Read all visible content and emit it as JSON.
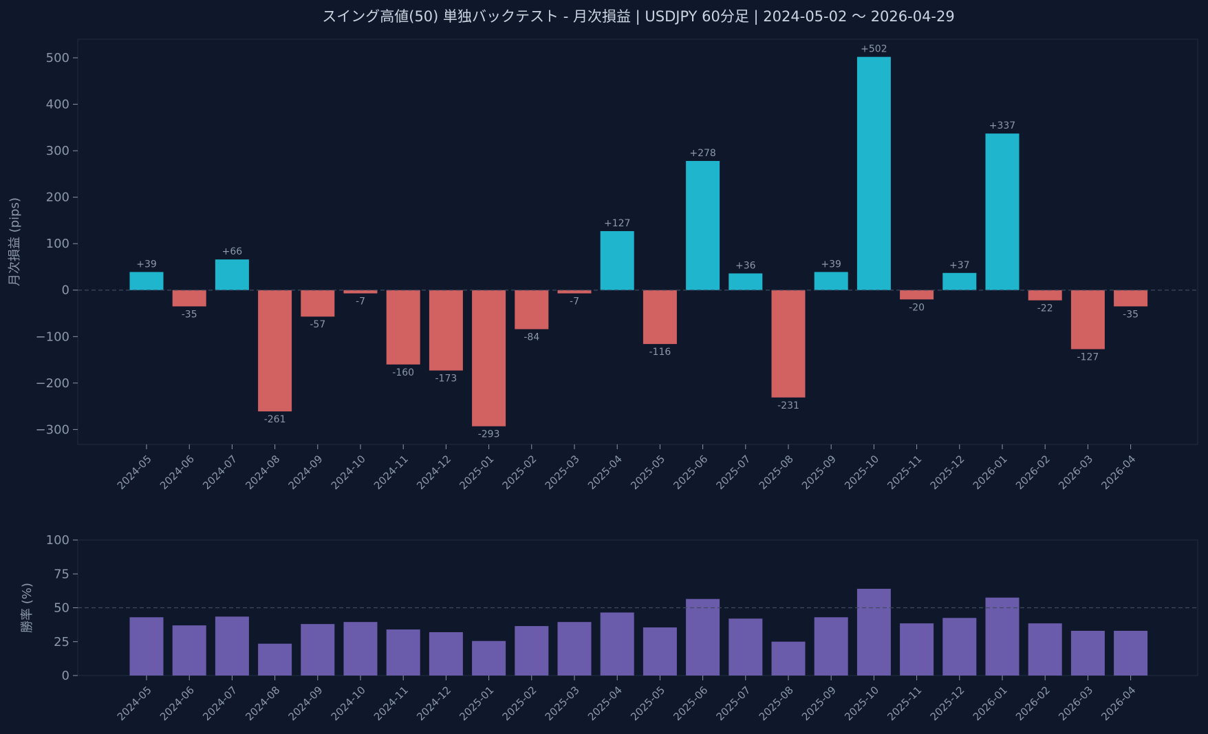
{
  "title": "スイング高値(50) 単独バックテスト - 月次損益 | USDJPY 60分足 | 2024-05-02 〜 2026-04-29",
  "colors": {
    "background": "#0f172a",
    "positive": "#1eb5cd",
    "negative": "#d26262",
    "winrate": "#6a5bab",
    "text": "#8b98ab",
    "frame": "#1f2a3d"
  },
  "chart_data": [
    {
      "type": "bar",
      "ylabel": "月次損益 (pips)",
      "categories": [
        "2024-05",
        "2024-06",
        "2024-07",
        "2024-08",
        "2024-09",
        "2024-10",
        "2024-11",
        "2024-12",
        "2025-01",
        "2025-02",
        "2025-03",
        "2025-04",
        "2025-05",
        "2025-06",
        "2025-07",
        "2025-08",
        "2025-09",
        "2025-10",
        "2025-11",
        "2025-12",
        "2026-01",
        "2026-02",
        "2026-03",
        "2026-04"
      ],
      "values": [
        39,
        -35,
        66,
        -261,
        -57,
        -7,
        -160,
        -173,
        -293,
        -84,
        -7,
        127,
        -116,
        278,
        36,
        -231,
        39,
        502,
        -20,
        37,
        337,
        -22,
        -127,
        -35
      ],
      "data_labels": [
        "+39",
        "-35",
        "+66",
        "-261",
        "-57",
        "-7",
        "-160",
        "-173",
        "-293",
        "-84",
        "-7",
        "+127",
        "-116",
        "+278",
        "+36",
        "-231",
        "+39",
        "+502",
        "-20",
        "+37",
        "+337",
        "-22",
        "-127",
        "-35"
      ],
      "yticks": [
        "500",
        "400",
        "300",
        "200",
        "100",
        "0",
        "−100",
        "−200",
        "−300"
      ],
      "ylim": [
        -332,
        540
      ],
      "reference_line": 0
    },
    {
      "type": "bar",
      "ylabel": "勝率 (%)",
      "categories": [
        "2024-05",
        "2024-06",
        "2024-07",
        "2024-08",
        "2024-09",
        "2024-10",
        "2024-11",
        "2024-12",
        "2025-01",
        "2025-02",
        "2025-03",
        "2025-04",
        "2025-05",
        "2025-06",
        "2025-07",
        "2025-08",
        "2025-09",
        "2025-10",
        "2025-11",
        "2025-12",
        "2026-01",
        "2026-02",
        "2026-03",
        "2026-04"
      ],
      "values": [
        43,
        37,
        43.5,
        23.5,
        38,
        39.5,
        34,
        32,
        25.5,
        36.5,
        39.5,
        46.5,
        35.5,
        56.5,
        42,
        25,
        43,
        64,
        38.5,
        42.5,
        57.5,
        38.5,
        33,
        33
      ],
      "yticks": [
        "100",
        "75",
        "50",
        "25",
        "0"
      ],
      "ylim": [
        0,
        100
      ],
      "reference_line": 50
    }
  ]
}
